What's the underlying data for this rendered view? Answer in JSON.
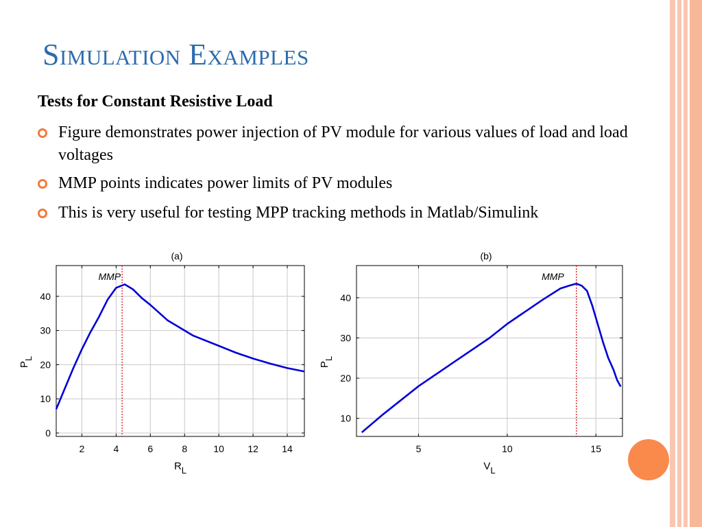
{
  "slide": {
    "title": "Simulation Examples",
    "subheading": "Tests for Constant Resistive Load",
    "bullets": [
      "Figure demonstrates power injection of PV module for various values of load and load voltages",
      "MMP points indicates power limits of PV modules",
      "This is very useful for testing MPP tracking methods in Matlab/Simulink"
    ],
    "colors": {
      "title": "#2b6cae",
      "bullet": "#f47a38",
      "stripe": "#f9c6b0",
      "circle": "#f98a4c",
      "curve": "#0000d6",
      "marker_line": "#d40000"
    }
  },
  "chart_data": [
    {
      "type": "line",
      "panel_label": "(a)",
      "annotation": "MMP",
      "xlabel": "R",
      "xlabel_sub": "L",
      "ylabel": "P",
      "ylabel_sub": "L",
      "xlim": [
        0.5,
        15
      ],
      "ylim": [
        -1,
        49
      ],
      "xticks": [
        2,
        4,
        6,
        8,
        10,
        12,
        14
      ],
      "yticks": [
        0,
        10,
        20,
        30,
        40
      ],
      "grid": true,
      "mmp_x": 4.35,
      "series": [
        {
          "x": [
            0.5,
            1,
            1.5,
            2,
            2.5,
            3,
            3.5,
            4,
            4.5,
            5,
            5.5,
            6,
            7,
            8,
            8.5,
            10,
            11,
            12,
            13,
            14,
            15
          ],
          "y": [
            7,
            13,
            19,
            24.5,
            29.5,
            34,
            39,
            42.5,
            43.5,
            42,
            39.5,
            37.5,
            33,
            30,
            28.5,
            25.5,
            23.5,
            21.8,
            20.3,
            19,
            18
          ]
        }
      ]
    },
    {
      "type": "line",
      "panel_label": "(b)",
      "annotation": "MMP",
      "xlabel": "V",
      "xlabel_sub": "L",
      "ylabel": "P",
      "ylabel_sub": "L",
      "xlim": [
        1.5,
        16.5
      ],
      "ylim": [
        5.5,
        48
      ],
      "xticks": [
        5,
        10,
        15
      ],
      "yticks": [
        10,
        20,
        30,
        40
      ],
      "grid": true,
      "mmp_x": 13.9,
      "series": [
        {
          "x": [
            1.8,
            3,
            5,
            7,
            9,
            10,
            11,
            12,
            13,
            13.5,
            13.9,
            14.2,
            14.5,
            14.8,
            15.1,
            15.4,
            15.7,
            16,
            16.2,
            16.4
          ],
          "y": [
            6.5,
            11,
            18,
            24,
            30,
            33.5,
            36.5,
            39.5,
            42.3,
            43,
            43.5,
            43,
            41.7,
            38,
            33.5,
            29,
            25,
            22,
            19.5,
            17.9
          ]
        }
      ]
    }
  ]
}
